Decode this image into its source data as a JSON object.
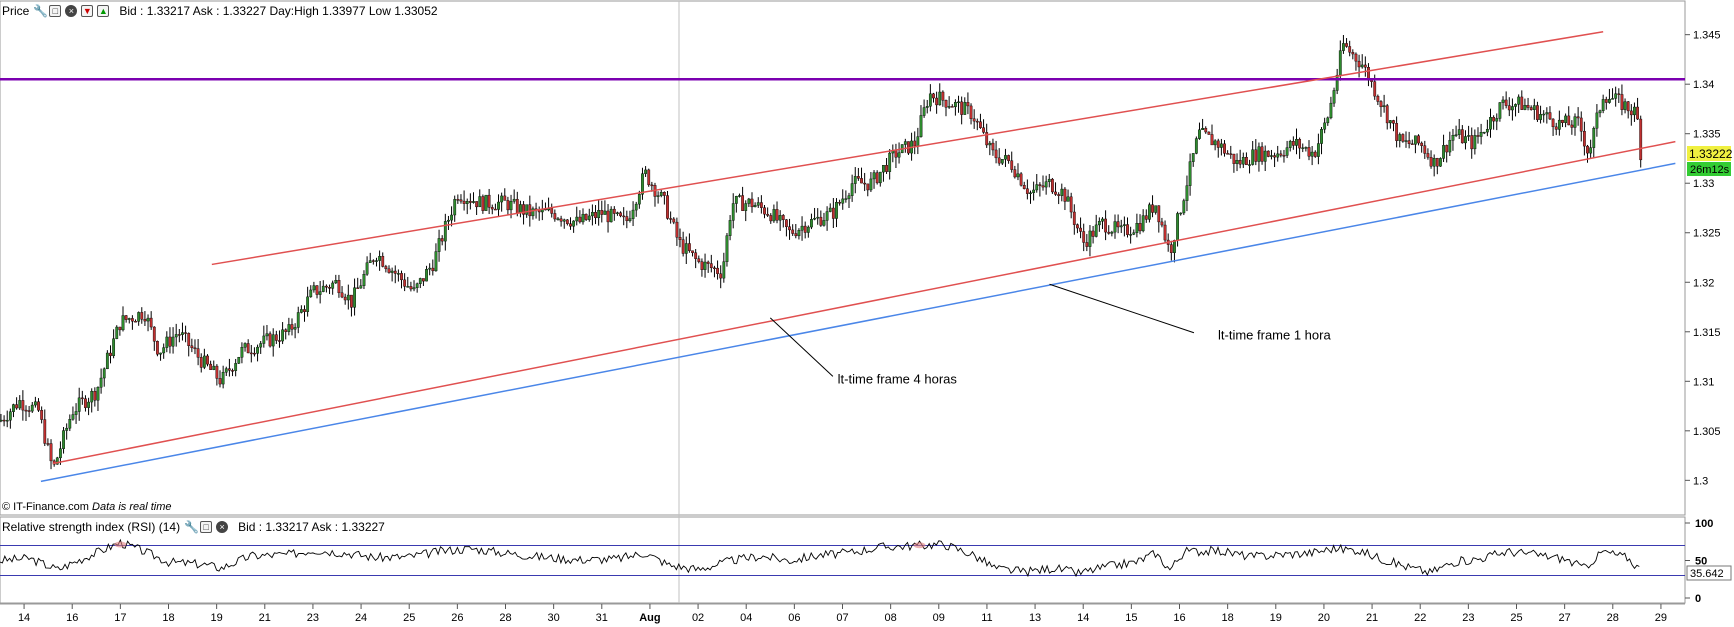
{
  "price_panel": {
    "title": "Price",
    "quote": "Bid : 1.33217 Ask : 1.33227 Day:High 1.33977 Low 1.33052",
    "credit_site": "© IT-Finance.com",
    "credit_note": "Data is real time",
    "last_price": "1.33222",
    "countdown": "26m12s"
  },
  "rsi_panel": {
    "title": "Relative strength index (RSI) (14)",
    "quote": "Bid : 1.33217 Ask : 1.33227",
    "last_value": "35.642"
  },
  "icons": [
    "wrench-icon",
    "window-icon",
    "close-icon",
    "move-down-icon",
    "move-up-icon"
  ],
  "colors": {
    "resistance": "#7b00b0",
    "trendline_4h": "#e05050",
    "trendline_1h": "#4a86e8",
    "bull_candle": "#2e8b2e",
    "bear_candle": "#c03030",
    "last_price_bg": "#f0f040",
    "countdown_bg": "#33cc33",
    "rsi_band": "#3a3ab0"
  },
  "chart_data": [
    {
      "type": "candlestick",
      "y_ticks": [
        "1.3",
        "1.305",
        "1.31",
        "1.315",
        "1.32",
        "1.325",
        "1.33",
        "1.335",
        "1.34",
        "1.345"
      ],
      "ylim": [
        1.2965,
        1.3484
      ],
      "x_ticks": [
        "14",
        "16",
        "17",
        "18",
        "19",
        "21",
        "23",
        "24",
        "25",
        "26",
        "28",
        "30",
        "31",
        "Aug",
        "02",
        "04",
        "06",
        "07",
        "08",
        "09",
        "11",
        "13",
        "14",
        "15",
        "16",
        "18",
        "19",
        "20",
        "21",
        "22",
        "23",
        "25",
        "27",
        "28",
        "29"
      ],
      "xlim": [
        0,
        35
      ],
      "x_tick_positions": [
        0.5,
        1.5,
        2.5,
        3.5,
        4.5,
        5.5,
        6.5,
        7.5,
        8.5,
        9.5,
        10.5,
        11.5,
        12.5,
        13.5,
        14.5,
        15.5,
        16.5,
        17.5,
        18.5,
        19.5,
        20.5,
        21.5,
        22.5,
        23.5,
        24.5,
        25.5,
        26.5,
        27.5,
        28.5,
        29.5,
        30.5,
        31.5,
        32.5,
        33.5,
        34.5
      ],
      "close_path": [
        [
          0.0,
          1.306
        ],
        [
          0.4,
          1.308
        ],
        [
          0.8,
          1.307
        ],
        [
          1.1,
          1.301
        ],
        [
          1.5,
          1.307
        ],
        [
          2.0,
          1.309
        ],
        [
          2.5,
          1.316
        ],
        [
          3.0,
          1.317
        ],
        [
          3.3,
          1.313
        ],
        [
          3.7,
          1.315
        ],
        [
          4.2,
          1.312
        ],
        [
          4.6,
          1.31
        ],
        [
          5.0,
          1.313
        ],
        [
          5.5,
          1.314
        ],
        [
          6.0,
          1.315
        ],
        [
          6.5,
          1.319
        ],
        [
          7.0,
          1.32
        ],
        [
          7.3,
          1.318
        ],
        [
          7.8,
          1.323
        ],
        [
          8.2,
          1.321
        ],
        [
          8.6,
          1.319
        ],
        [
          9.0,
          1.322
        ],
        [
          9.5,
          1.329
        ],
        [
          10.0,
          1.328
        ],
        [
          10.5,
          1.328
        ],
        [
          11.0,
          1.327
        ],
        [
          11.5,
          1.327
        ],
        [
          12.0,
          1.326
        ],
        [
          12.5,
          1.327
        ],
        [
          13.0,
          1.326
        ],
        [
          13.4,
          1.331
        ],
        [
          13.8,
          1.328
        ],
        [
          14.1,
          1.324
        ],
        [
          14.5,
          1.322
        ],
        [
          15.0,
          1.321
        ],
        [
          15.2,
          1.328
        ],
        [
          15.6,
          1.328
        ],
        [
          16.0,
          1.327
        ],
        [
          16.4,
          1.325
        ],
        [
          16.8,
          1.326
        ],
        [
          17.3,
          1.327
        ],
        [
          17.7,
          1.33
        ],
        [
          18.1,
          1.33
        ],
        [
          18.6,
          1.333
        ],
        [
          19.0,
          1.334
        ],
        [
          19.3,
          1.339
        ],
        [
          19.8,
          1.338
        ],
        [
          20.2,
          1.337
        ],
        [
          20.6,
          1.333
        ],
        [
          21.0,
          1.332
        ],
        [
          21.4,
          1.329
        ],
        [
          21.8,
          1.33
        ],
        [
          22.1,
          1.329
        ],
        [
          22.5,
          1.324
        ],
        [
          22.9,
          1.326
        ],
        [
          23.3,
          1.325
        ],
        [
          23.7,
          1.326
        ],
        [
          24.0,
          1.328
        ],
        [
          24.3,
          1.323
        ],
        [
          24.5,
          1.327
        ],
        [
          24.9,
          1.335
        ],
        [
          25.3,
          1.334
        ],
        [
          25.7,
          1.332
        ],
        [
          26.1,
          1.333
        ],
        [
          26.5,
          1.333
        ],
        [
          26.9,
          1.334
        ],
        [
          27.3,
          1.333
        ],
        [
          27.6,
          1.337
        ],
        [
          27.9,
          1.344
        ],
        [
          28.3,
          1.342
        ],
        [
          28.7,
          1.338
        ],
        [
          29.1,
          1.334
        ],
        [
          29.5,
          1.334
        ],
        [
          29.8,
          1.332
        ],
        [
          30.2,
          1.335
        ],
        [
          30.6,
          1.334
        ],
        [
          30.9,
          1.336
        ],
        [
          31.2,
          1.338
        ],
        [
          31.6,
          1.338
        ],
        [
          32.0,
          1.337
        ],
        [
          32.4,
          1.336
        ],
        [
          32.8,
          1.336
        ],
        [
          33.0,
          1.333
        ],
        [
          33.3,
          1.339
        ],
        [
          33.7,
          1.338
        ],
        [
          34.0,
          1.337
        ],
        [
          34.1,
          1.3322
        ]
      ],
      "resistance_level": 1.3405,
      "trendlines": [
        {
          "color": "trendline_4h",
          "points": [
            [
              4.4,
              1.3218
            ],
            [
              33.3,
              1.3453
            ]
          ]
        },
        {
          "color": "trendline_4h",
          "points": [
            [
              1.1,
              1.3017
            ],
            [
              34.8,
              1.3342
            ]
          ]
        },
        {
          "color": "trendline_1h",
          "points": [
            [
              0.85,
              1.2999
            ],
            [
              34.8,
              1.332
            ]
          ]
        }
      ],
      "annotations": [
        {
          "text": "lt-time frame 4 horas",
          "x": 17.4,
          "y": 1.3098,
          "line_to": [
            16.0,
            1.3164
          ],
          "line_from": [
            17.3,
            1.3105
          ]
        },
        {
          "text": "lt-time frame 1 hora",
          "x": 25.3,
          "y": 1.3142,
          "line_to": [
            21.8,
            1.3198
          ],
          "line_from": [
            24.8,
            1.3149
          ]
        }
      ]
    },
    {
      "type": "line",
      "y_ticks": [
        "0",
        "50",
        "100"
      ],
      "ylim": [
        0,
        100
      ],
      "bands": [
        30,
        70
      ],
      "xlim": [
        0,
        35
      ],
      "path": [
        [
          0.0,
          50
        ],
        [
          0.6,
          53
        ],
        [
          1.2,
          38
        ],
        [
          1.8,
          55
        ],
        [
          2.5,
          74
        ],
        [
          3.0,
          62
        ],
        [
          3.5,
          48
        ],
        [
          4.2,
          45
        ],
        [
          4.6,
          40
        ],
        [
          5.2,
          56
        ],
        [
          6.0,
          58
        ],
        [
          6.5,
          64
        ],
        [
          7.2,
          60
        ],
        [
          7.8,
          54
        ],
        [
          8.5,
          55
        ],
        [
          9.2,
          63
        ],
        [
          9.8,
          66
        ],
        [
          10.5,
          60
        ],
        [
          11.2,
          55
        ],
        [
          12.0,
          51
        ],
        [
          12.8,
          52
        ],
        [
          13.4,
          60
        ],
        [
          13.9,
          44
        ],
        [
          14.5,
          38
        ],
        [
          15.2,
          50
        ],
        [
          15.8,
          56
        ],
        [
          16.4,
          50
        ],
        [
          17.0,
          57
        ],
        [
          17.6,
          60
        ],
        [
          18.3,
          68
        ],
        [
          19.0,
          70
        ],
        [
          19.6,
          72
        ],
        [
          20.2,
          58
        ],
        [
          20.7,
          39
        ],
        [
          21.3,
          35
        ],
        [
          21.9,
          40
        ],
        [
          22.4,
          33
        ],
        [
          23.0,
          42
        ],
        [
          23.6,
          48
        ],
        [
          24.0,
          60
        ],
        [
          24.3,
          38
        ],
        [
          24.6,
          62
        ],
        [
          25.3,
          63
        ],
        [
          26.0,
          55
        ],
        [
          26.6,
          58
        ],
        [
          27.2,
          60
        ],
        [
          27.7,
          66
        ],
        [
          28.2,
          64
        ],
        [
          28.7,
          52
        ],
        [
          29.2,
          42
        ],
        [
          29.7,
          34
        ],
        [
          30.2,
          48
        ],
        [
          30.7,
          52
        ],
        [
          31.3,
          62
        ],
        [
          31.9,
          58
        ],
        [
          32.5,
          52
        ],
        [
          32.9,
          40
        ],
        [
          33.3,
          62
        ],
        [
          33.8,
          54
        ],
        [
          34.1,
          36
        ]
      ]
    }
  ]
}
